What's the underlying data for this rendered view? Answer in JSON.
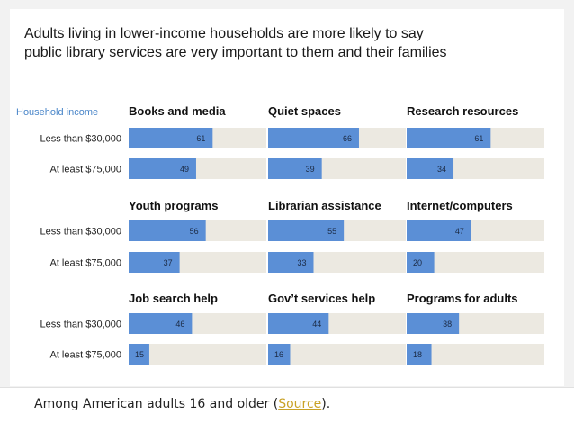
{
  "title_lines": [
    "Adults living in lower-income households are more likely to say",
    "public library services are very important to them and their families"
  ],
  "caption": {
    "prefix": "Among American adults 16 and older (",
    "link": "Source",
    "suffix": ")."
  },
  "colors": {
    "bar": "#5b8fd6",
    "track": "#ece9e1",
    "label_accent": "#4a86c9"
  },
  "chart_data": {
    "type": "bar",
    "orientation": "horizontal",
    "legend_label": "Household income",
    "categories": [
      "Less than $30,000",
      "At least $75,000"
    ],
    "xlim": [
      0,
      100
    ],
    "panels": [
      {
        "title": "Books and media",
        "values": [
          61,
          49
        ]
      },
      {
        "title": "Quiet spaces",
        "values": [
          66,
          39
        ]
      },
      {
        "title": "Research resources",
        "values": [
          61,
          34
        ]
      },
      {
        "title": "Youth programs",
        "values": [
          56,
          37
        ]
      },
      {
        "title": "Librarian assistance",
        "values": [
          55,
          33
        ]
      },
      {
        "title": "Internet/computers",
        "values": [
          47,
          20
        ]
      },
      {
        "title": "Job search help",
        "values": [
          46,
          15
        ]
      },
      {
        "title": "Gov’t services help",
        "values": [
          44,
          16
        ]
      },
      {
        "title": "Programs for adults",
        "values": [
          38,
          18
        ]
      }
    ]
  }
}
